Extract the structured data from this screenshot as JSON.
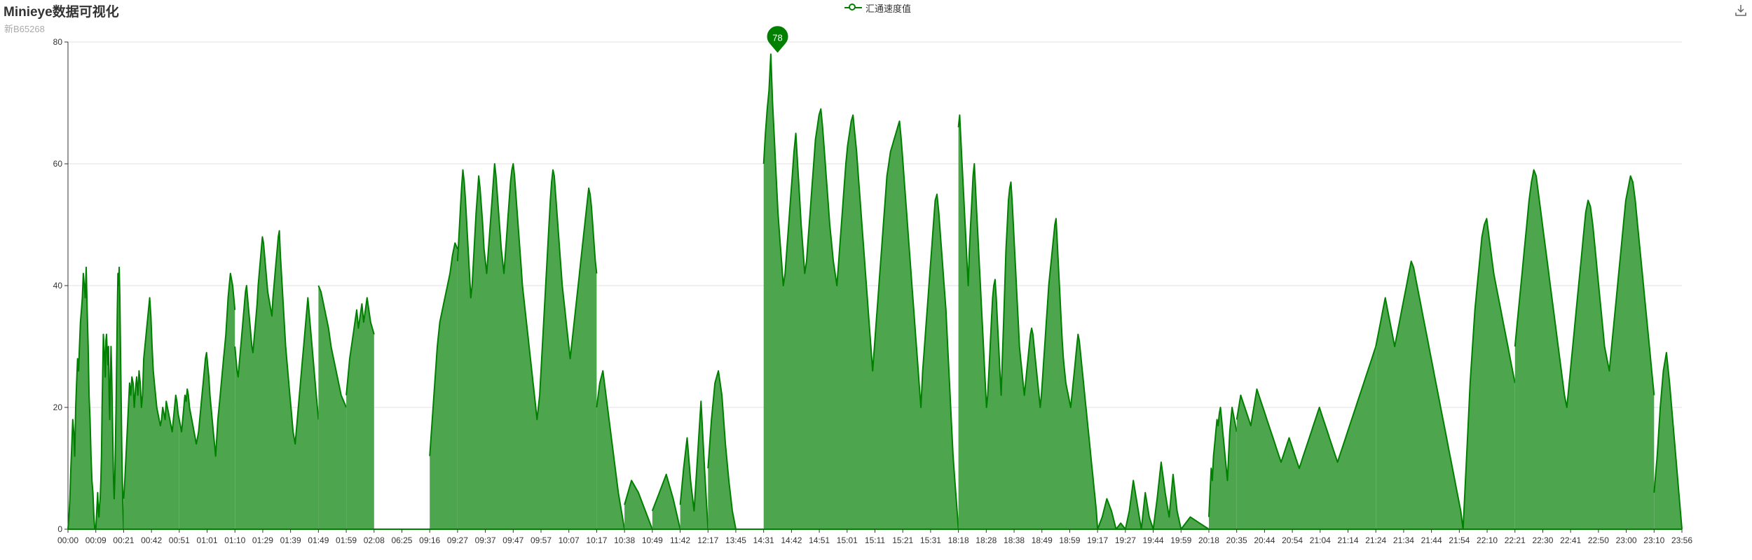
{
  "chart_data": {
    "type": "area",
    "title": "Minieye数据可视化",
    "subtitle": "新B65268",
    "legend": {
      "entries": [
        "汇通速度值"
      ],
      "placement": "top-center"
    },
    "ylim": [
      0,
      80
    ],
    "yticks": [
      0,
      20,
      40,
      60,
      80
    ],
    "grid": true,
    "x": [
      "00:00",
      "00:09",
      "00:21",
      "00:42",
      "00:51",
      "01:01",
      "01:10",
      "01:29",
      "01:39",
      "01:49",
      "01:59",
      "02:08",
      "06:25",
      "09:16",
      "09:27",
      "09:37",
      "09:47",
      "09:57",
      "10:07",
      "10:17",
      "10:38",
      "10:49",
      "11:42",
      "12:17",
      "13:45",
      "14:31",
      "14:42",
      "14:51",
      "15:01",
      "15:11",
      "15:21",
      "15:31",
      "18:18",
      "18:28",
      "18:38",
      "18:49",
      "18:59",
      "19:17",
      "19:27",
      "19:44",
      "19:59",
      "20:18",
      "20:35",
      "20:44",
      "20:54",
      "21:04",
      "21:14",
      "21:24",
      "21:34",
      "21:44",
      "21:54",
      "22:10",
      "22:21",
      "22:30",
      "22:41",
      "22:50",
      "23:00",
      "23:10",
      "23:56"
    ],
    "series": [
      {
        "name": "汇通速度值",
        "color": "#008000",
        "fill": "#4da64d",
        "segments": [
          [
            0,
            1,
            [
              0,
              2,
              5,
              10,
              14,
              18,
              16,
              12,
              20,
              24,
              28,
              26,
              30,
              34,
              36,
              38,
              42,
              40,
              38,
              43,
              36,
              30,
              22,
              18,
              12,
              8,
              6,
              2,
              0,
              0
            ]
          ],
          [
            1,
            2,
            [
              0,
              2,
              4,
              6,
              3,
              2,
              4,
              5,
              8,
              12,
              20,
              26,
              32,
              30,
              28,
              25,
              31,
              32,
              29,
              27,
              30,
              22,
              18,
              25,
              30,
              26,
              20,
              14,
              8,
              5,
              8,
              14,
              20,
              28,
              36,
              42,
              40,
              43,
              38,
              30,
              22,
              14,
              8,
              3,
              0
            ]
          ],
          [
            2,
            4,
            [
              5,
              8,
              12,
              16,
              20,
              24,
              22,
              25,
              24,
              20,
              23,
              25,
              22,
              26,
              24,
              20,
              22,
              28,
              30,
              32,
              34,
              36,
              38,
              35,
              30,
              26,
              24,
              22,
              20,
              19,
              18,
              17,
              18,
              20,
              19,
              18,
              21,
              20,
              19,
              18,
              17,
              16,
              18,
              20,
              22,
              21,
              19,
              18
            ]
          ],
          [
            4,
            6,
            [
              18,
              17,
              16,
              18,
              20,
              22,
              21,
              23,
              22,
              20,
              19,
              18,
              17,
              16,
              15,
              14,
              15,
              16,
              18,
              20,
              22,
              24,
              26,
              28,
              29,
              27,
              25,
              22,
              20,
              18,
              16,
              14,
              12,
              15,
              18,
              20,
              22,
              24,
              26,
              28,
              30,
              32,
              35,
              38,
              40,
              42,
              41,
              40,
              38,
              36
            ]
          ],
          [
            6,
            9,
            [
              30,
              28,
              26,
              25,
              27,
              29,
              31,
              33,
              35,
              37,
              39,
              40,
              38,
              36,
              34,
              32,
              30,
              29,
              31,
              33,
              35,
              37,
              40,
              42,
              44,
              46,
              48,
              47,
              45,
              43,
              41,
              39,
              38,
              37,
              36,
              35,
              38,
              40,
              42,
              44,
              46,
              48,
              49,
              45,
              42,
              39,
              36,
              33,
              30,
              28,
              26,
              24,
              22,
              20,
              18,
              16,
              15,
              14,
              16,
              18,
              20,
              22,
              24,
              26,
              28,
              30,
              32,
              34,
              36,
              38,
              36,
              34,
              32,
              30,
              28,
              26,
              24,
              22,
              20,
              18
            ]
          ],
          [
            9,
            10,
            [
              40,
              39,
              37,
              35,
              33,
              30,
              28,
              26,
              24,
              22,
              21,
              20
            ]
          ],
          [
            10,
            11,
            [
              22,
              25,
              28,
              30,
              32,
              34,
              36,
              33,
              35,
              37,
              34,
              36,
              38,
              36,
              34,
              33,
              32
            ]
          ],
          [
            13,
            14,
            [
              12,
              18,
              24,
              30,
              34,
              36,
              38,
              40,
              42,
              45,
              47,
              46
            ]
          ],
          [
            14,
            19,
            [
              44,
              48,
              52,
              56,
              59,
              57,
              54,
              50,
              46,
              42,
              38,
              40,
              44,
              48,
              52,
              55,
              58,
              56,
              53,
              50,
              46,
              44,
              42,
              45,
              48,
              51,
              54,
              57,
              60,
              58,
              55,
              52,
              49,
              46,
              44,
              42,
              45,
              48,
              51,
              54,
              57,
              59,
              60,
              58,
              55,
              52,
              49,
              46,
              43,
              40,
              38,
              36,
              34,
              32,
              30,
              28,
              26,
              24,
              22,
              20,
              18,
              20,
              22,
              26,
              30,
              34,
              38,
              42,
              46,
              50,
              54,
              57,
              59,
              58,
              55,
              52,
              49,
              46,
              43,
              40,
              38,
              36,
              34,
              32,
              30,
              28,
              30,
              32,
              34,
              36,
              38,
              40,
              42,
              44,
              46,
              48,
              50,
              52,
              54,
              56,
              55,
              53,
              50,
              47,
              44,
              42
            ]
          ],
          [
            19,
            20,
            [
              20,
              24,
              26,
              22,
              18,
              14,
              10,
              6,
              3,
              0
            ]
          ],
          [
            20,
            21,
            [
              4,
              8,
              6,
              3,
              0
            ]
          ],
          [
            21,
            22,
            [
              3,
              6,
              9,
              5,
              0
            ]
          ],
          [
            22,
            23,
            [
              4,
              10,
              15,
              8,
              3,
              12,
              21,
              10,
              0
            ]
          ],
          [
            23,
            24,
            [
              10,
              18,
              24,
              26,
              22,
              14,
              8,
              3,
              0
            ]
          ],
          [
            25,
            32,
            [
              60,
              65,
              69,
              72,
              78,
              70,
              64,
              58,
              52,
              48,
              44,
              40,
              42,
              46,
              50,
              54,
              58,
              62,
              65,
              60,
              55,
              50,
              46,
              42,
              44,
              48,
              52,
              56,
              60,
              64,
              66,
              68,
              69,
              66,
              62,
              58,
              54,
              50,
              47,
              44,
              42,
              40,
              44,
              48,
              52,
              56,
              60,
              63,
              65,
              67,
              68,
              65,
              62,
              58,
              54,
              50,
              46,
              42,
              38,
              34,
              30,
              26,
              30,
              34,
              38,
              42,
              46,
              50,
              54,
              58,
              60,
              62,
              63,
              64,
              65,
              66,
              67,
              64,
              60,
              56,
              52,
              48,
              44,
              40,
              36,
              32,
              28,
              24,
              20,
              26,
              30,
              34,
              38,
              42,
              46,
              50,
              54,
              55,
              52,
              48,
              44,
              40,
              36,
              30,
              24,
              18,
              12,
              8,
              4,
              0
            ]
          ],
          [
            32,
            37,
            [
              66,
              68,
              64,
              60,
              56,
              52,
              48,
              44,
              40,
              46,
              50,
              54,
              58,
              60,
              56,
              52,
              48,
              44,
              40,
              36,
              32,
              28,
              24,
              20,
              22,
              26,
              30,
              34,
              38,
              40,
              41,
              38,
              34,
              30,
              26,
              22,
              28,
              34,
              40,
              46,
              50,
              54,
              56,
              57,
              54,
              50,
              46,
              42,
              38,
              34,
              30,
              28,
              26,
              24,
              22,
              24,
              26,
              28,
              30,
              32,
              33,
              32,
              30,
              28,
              26,
              24,
              22,
              20,
              22,
              25,
              28,
              31,
              34,
              37,
              40,
              42,
              44,
              46,
              48,
              50,
              51,
              47,
              43,
              39,
              35,
              31,
              28,
              26,
              24,
              23,
              22,
              21,
              20,
              22,
              24,
              26,
              28,
              30,
              32,
              31,
              29,
              27,
              25,
              23,
              21,
              19,
              17,
              15,
              13,
              11,
              9,
              7,
              5,
              3,
              0
            ]
          ],
          [
            37,
            38,
            [
              0,
              2,
              5,
              3,
              0,
              1,
              0
            ]
          ],
          [
            38,
            39,
            [
              0,
              3,
              8,
              4,
              0,
              6,
              2,
              0
            ]
          ],
          [
            39,
            40,
            [
              0,
              5,
              11,
              6,
              2,
              9,
              3,
              0
            ]
          ],
          [
            40,
            41,
            [
              0,
              2,
              1,
              0
            ]
          ],
          [
            41,
            42,
            [
              2,
              6,
              10,
              8,
              12,
              14,
              16,
              18,
              17,
              19,
              20,
              18,
              16,
              14,
              12,
              10,
              8,
              12,
              16,
              18,
              20,
              19,
              18,
              17,
              16
            ]
          ],
          [
            42,
            47,
            [
              18,
              20,
              22,
              21,
              20,
              19,
              18,
              17,
              19,
              21,
              23,
              22,
              21,
              20,
              19,
              18,
              17,
              16,
              15,
              14,
              13,
              12,
              11,
              12,
              13,
              14,
              15,
              14,
              13,
              12,
              11,
              10,
              11,
              12,
              13,
              14,
              15,
              16,
              17,
              18,
              19,
              20,
              19,
              18,
              17,
              16,
              15,
              14,
              13,
              12,
              11,
              12,
              13,
              14,
              15,
              16,
              17,
              18,
              19,
              20,
              21,
              22,
              23,
              24,
              25,
              26,
              27,
              28,
              29,
              30
            ]
          ],
          [
            47,
            52,
            [
              30,
              32,
              34,
              36,
              38,
              36,
              34,
              32,
              30,
              32,
              34,
              36,
              38,
              40,
              42,
              44,
              43,
              41,
              39,
              37,
              35,
              33,
              31,
              29,
              27,
              25,
              23,
              21,
              19,
              17,
              15,
              13,
              11,
              9,
              7,
              5,
              3,
              0,
              8,
              16,
              24,
              30,
              36,
              40,
              44,
              48,
              50,
              51,
              48,
              45,
              42,
              40,
              38,
              36,
              34,
              32,
              30,
              28,
              26,
              24
            ]
          ],
          [
            52,
            57,
            [
              30,
              34,
              38,
              42,
              46,
              50,
              54,
              57,
              59,
              58,
              55,
              52,
              49,
              46,
              43,
              40,
              37,
              34,
              31,
              28,
              25,
              22,
              20,
              24,
              28,
              32,
              36,
              40,
              44,
              48,
              52,
              54,
              53,
              50,
              46,
              42,
              38,
              34,
              30,
              28,
              26,
              30,
              34,
              38,
              42,
              46,
              50,
              54,
              56,
              58,
              57,
              54,
              50,
              46,
              42,
              38,
              34,
              30,
              26,
              22
            ]
          ],
          [
            57,
            58,
            [
              6,
              12,
              20,
              26,
              29,
              24,
              18,
              12,
              6,
              0
            ]
          ]
        ]
      }
    ],
    "marker": {
      "label": "78",
      "x_index": 25.5,
      "value": 78
    }
  }
}
